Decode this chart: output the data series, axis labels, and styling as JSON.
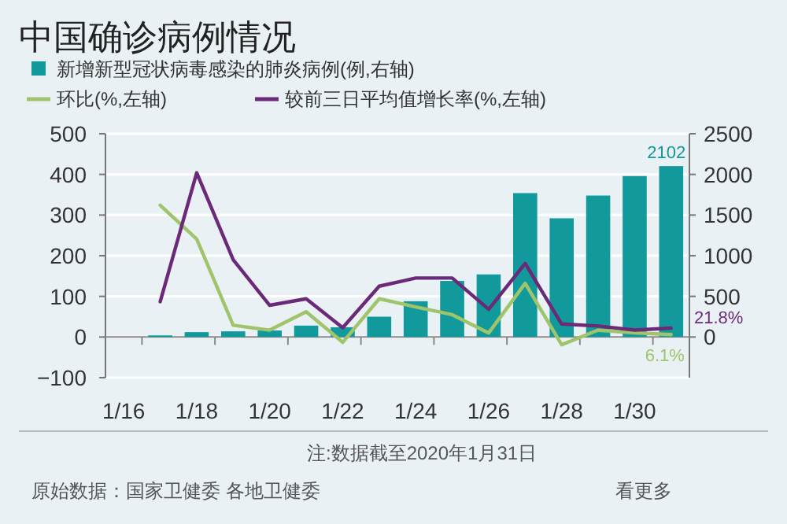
{
  "chart_data": {
    "type": "bar",
    "title": "中国确诊病例情况",
    "categories": [
      "1/16",
      null,
      "1/18",
      null,
      "1/20",
      null,
      "1/22",
      null,
      "1/24",
      null,
      "1/26",
      null,
      "1/28",
      null,
      "1/30",
      null
    ],
    "series": [
      {
        "name": "新增新型冠状病毒感染的肺炎病例(例,右轴)",
        "axis": "y2",
        "color": "#12999b",
        "values": [
          0,
          20,
          60,
          70,
          80,
          140,
          120,
          250,
          440,
          690,
          770,
          1770,
          1460,
          1740,
          1980,
          2102
        ],
        "value_labels": [
          null,
          null,
          null,
          null,
          null,
          null,
          null,
          null,
          null,
          null,
          null,
          null,
          null,
          null,
          null,
          "2102"
        ]
      },
      {
        "name": "环比(%,左轴)",
        "type": "line",
        "color": "#9fc46b",
        "values": [
          null,
          324,
          241,
          29,
          17,
          62,
          -13,
          94,
          74,
          55,
          10,
          132,
          -19,
          17,
          10,
          6.1
        ],
        "value_labels": [
          null,
          null,
          null,
          null,
          null,
          null,
          null,
          null,
          null,
          null,
          null,
          null,
          null,
          null,
          null,
          "6.1%"
        ]
      },
      {
        "name": "较前三日平均值增长率(%,左轴)",
        "type": "line",
        "color": "#6b2a78",
        "values": [
          null,
          87,
          404,
          190,
          78,
          94,
          23,
          125,
          145,
          145,
          68,
          181,
          32,
          27,
          17,
          21.8
        ],
        "value_labels": [
          null,
          null,
          null,
          null,
          null,
          null,
          null,
          null,
          null,
          null,
          null,
          null,
          null,
          null,
          null,
          "21.8%"
        ]
      }
    ],
    "ylim": [
      -100,
      500
    ],
    "yticks": [
      -100,
      0,
      100,
      200,
      300,
      400,
      500
    ],
    "y2lim": [
      -500,
      2500
    ],
    "y2ticks": [
      0,
      500,
      1000,
      1500,
      2000,
      2500
    ],
    "grid": "y",
    "legend": "top",
    "annotations": [
      "注:数据截至2020年1月31日",
      "原始数据：国家卫健委 各地卫健委",
      "看更多"
    ]
  }
}
